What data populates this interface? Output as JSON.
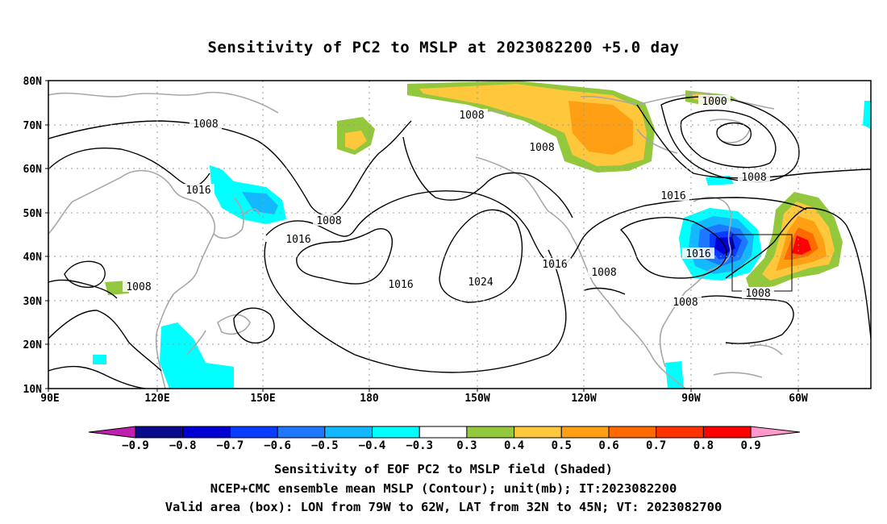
{
  "title": "Sensitivity of PC2 to MSLP at 2023082200 +5.0 day",
  "axes": {
    "lat_labels": [
      "80N",
      "70N",
      "60N",
      "50N",
      "40N",
      "30N",
      "20N",
      "10N"
    ],
    "lon_labels": [
      "90E",
      "120E",
      "150E",
      "180",
      "150W",
      "120W",
      "90W",
      "60W"
    ]
  },
  "contour_labels": [
    "1008",
    "1008",
    "1008",
    "1000",
    "1016",
    "1008",
    "1016",
    "1008",
    "1016",
    "1016",
    "1024",
    "1016",
    "1008",
    "1016",
    "1008",
    "1008",
    "1008"
  ],
  "colorbar": {
    "labels": [
      "−0.9",
      "−0.8",
      "−0.7",
      "−0.6",
      "−0.5",
      "−0.4",
      "−0.3",
      "0.3",
      "0.4",
      "0.5",
      "0.6",
      "0.7",
      "0.8",
      "0.9"
    ],
    "colors": [
      "#c01fb0",
      "#0a0a8c",
      "#0000d4",
      "#0a3cff",
      "#1e78ff",
      "#14b8ff",
      "#00ffff",
      "#ffffff",
      "#94c83c",
      "#ffc83c",
      "#ffa014",
      "#ff6a00",
      "#ff3200",
      "#ff0000",
      "#ff99cc"
    ]
  },
  "captions": {
    "line1": "Sensitivity of EOF PC2 to MSLP field (Shaded)",
    "line2": "NCEP+CMC ensemble mean MSLP (Contour); unit(mb); IT:2023082200",
    "line3": "Valid area (box): LON from 79W to 62W, LAT from 32N to 45N; VT: 2023082700"
  }
}
